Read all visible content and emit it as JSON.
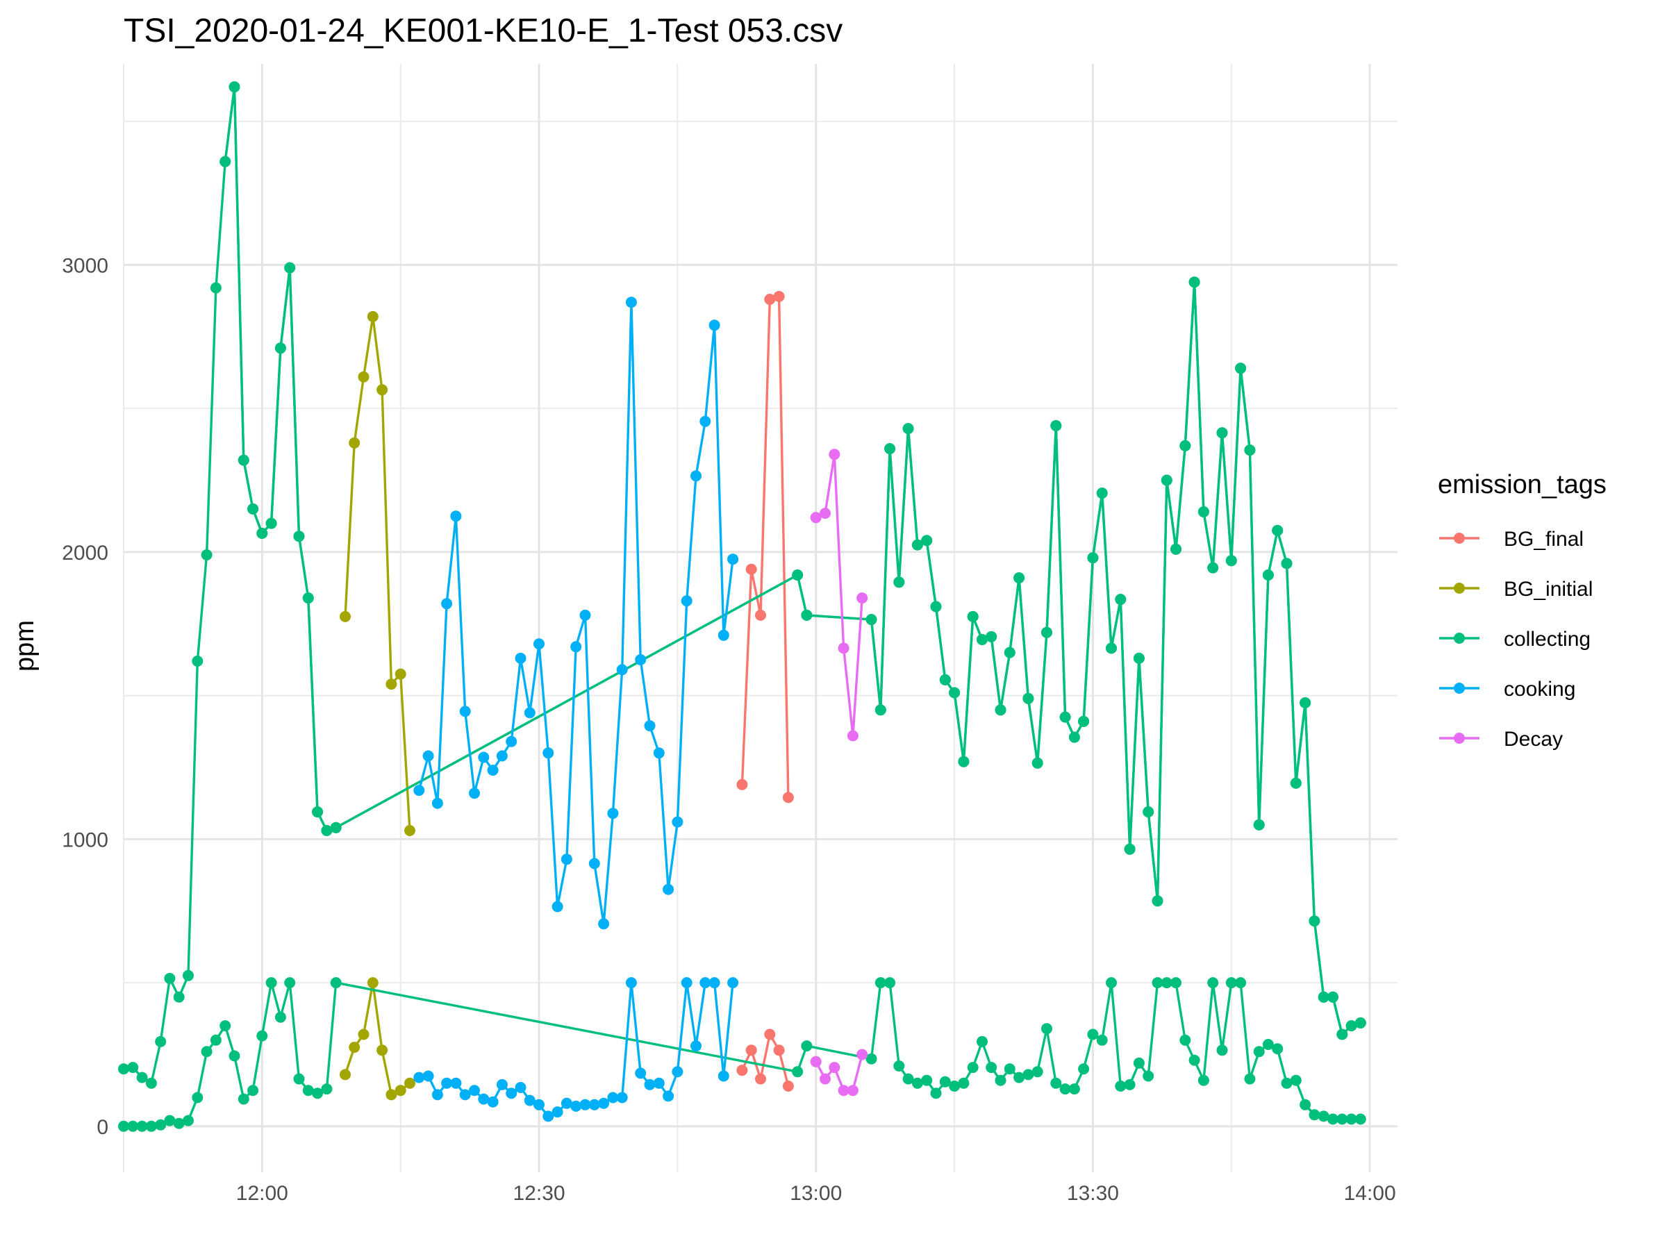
{
  "chart_data": {
    "type": "line",
    "title": "TSI_2020-01-24_KE001-KE10-E_1-Test 053.csv",
    "xlabel": "",
    "ylabel": "ppm",
    "x_ticks": [
      "12:00",
      "12:30",
      "13:00",
      "13:30",
      "14:00"
    ],
    "y_ticks": [
      0,
      1000,
      2000,
      3000
    ],
    "xlim": [
      "11:45",
      "14:03"
    ],
    "ylim": [
      -160,
      3700
    ],
    "grid": true,
    "legend_title": "emission_tags",
    "legend_position": "right",
    "series": [
      {
        "name": "BG_final",
        "color": "#F8766D",
        "lines": [
          {
            "x": [
              "12:52",
              "12:53",
              "12:54",
              "12:55",
              "12:56",
              "12:57"
            ],
            "y": [
              1190,
              1940,
              1780,
              2880,
              2890,
              1145
            ]
          },
          {
            "x": [
              "12:52",
              "12:53",
              "12:54",
              "12:55",
              "12:56",
              "12:57"
            ],
            "y": [
              195,
              265,
              165,
              320,
              265,
              140
            ]
          }
        ]
      },
      {
        "name": "BG_initial",
        "color": "#A3A500",
        "lines": [
          {
            "x": [
              "12:09",
              "12:10",
              "12:11",
              "12:12",
              "12:13",
              "12:14",
              "12:15",
              "12:16"
            ],
            "y": [
              1775,
              2380,
              2610,
              2820,
              2565,
              1540,
              1575,
              1030
            ]
          },
          {
            "x": [
              "12:09",
              "12:10",
              "12:11",
              "12:12",
              "12:13",
              "12:14",
              "12:15",
              "12:16"
            ],
            "y": [
              180,
              275,
              320,
              500,
              265,
              110,
              125,
              150
            ]
          }
        ]
      },
      {
        "name": "collecting",
        "color": "#00BF7D",
        "lines": [
          {
            "x": [
              "11:56",
              "11:57",
              "11:58",
              "11:59",
              "12:00",
              "12:01",
              "12:02",
              "12:03",
              "12:04",
              "12:05",
              "12:06",
              "12:07",
              "12:08",
              "12:58",
              "12:59",
              "13:06",
              "13:07",
              "13:08",
              "13:09",
              "13:10",
              "13:11",
              "13:12",
              "13:13",
              "13:14",
              "13:15",
              "13:16",
              "13:17",
              "13:18",
              "13:19",
              "13:20",
              "13:21",
              "13:22",
              "13:23",
              "13:24",
              "13:25",
              "13:26",
              "13:27",
              "13:28",
              "13:29",
              "13:30",
              "13:31",
              "13:32",
              "13:33",
              "13:34",
              "13:35",
              "13:36",
              "13:37",
              "13:38",
              "13:39",
              "13:40",
              "13:41",
              "13:42",
              "13:43",
              "13:44",
              "13:45",
              "13:46",
              "13:47",
              "13:48",
              "13:49",
              "13:50",
              "13:51",
              "13:52",
              "13:53",
              "13:54",
              "13:55",
              "13:56",
              "13:57",
              "13:58",
              "13:59"
            ],
            "y": [
              3360,
              3620,
              2320,
              2150,
              2065,
              2100,
              2710,
              2990,
              2055,
              1840,
              1095,
              1030,
              1040,
              1920,
              1780,
              1765,
              1450,
              2360,
              1895,
              2430,
              2025,
              2040,
              1810,
              1555,
              1510,
              1270,
              1775,
              1695,
              1705,
              1450,
              1650,
              1910,
              1490,
              1265,
              1720,
              2440,
              1425,
              1355,
              1410,
              1980,
              2205,
              1665,
              1835,
              965,
              1630,
              1095,
              785,
              2250,
              2010,
              2370,
              2940,
              2140,
              1945,
              2415,
              1970,
              2640,
              2355,
              1050,
              1920,
              2075,
              1960,
              1195,
              1475,
              715,
              450,
              450,
              320,
              350,
              360
            ]
          },
          {
            "x": [
              "11:45",
              "11:46",
              "11:47",
              "11:48",
              "11:49",
              "11:50",
              "11:51",
              "11:52",
              "11:53",
              "11:54",
              "11:55",
              "11:56",
              "11:57",
              "11:58",
              "11:59",
              "12:00",
              "12:01",
              "12:02",
              "12:03",
              "12:04",
              "12:05",
              "12:06",
              "12:07",
              "12:08",
              "12:58",
              "12:59",
              "13:06",
              "13:07",
              "13:08",
              "13:09",
              "13:10",
              "13:11",
              "13:12",
              "13:13",
              "13:14",
              "13:15",
              "13:16",
              "13:17",
              "13:18",
              "13:19",
              "13:20",
              "13:21",
              "13:22",
              "13:23",
              "13:24",
              "13:25",
              "13:26",
              "13:27",
              "13:28",
              "13:29",
              "13:30",
              "13:31",
              "13:32",
              "13:33",
              "13:34",
              "13:35",
              "13:36",
              "13:37",
              "13:38",
              "13:39",
              "13:40",
              "13:41",
              "13:42",
              "13:43",
              "13:44",
              "13:45",
              "13:46",
              "13:47",
              "13:48",
              "13:49",
              "13:50",
              "13:51",
              "13:52",
              "13:53",
              "13:54",
              "13:55",
              "13:56",
              "13:57",
              "13:58",
              "13:59"
            ],
            "y": [
              200,
              205,
              170,
              150,
              295,
              515,
              450,
              525,
              1620,
              1990,
              2920,
              3360,
              3620,
              2320,
              2150,
              2065,
              2100,
              2710,
              2990,
              2055,
              1840,
              1095,
              1030,
              1040,
              1920,
              1780,
              1765,
              1450,
              2360,
              1895,
              2430,
              2025,
              2040,
              1810,
              1555,
              1510,
              1270,
              1775,
              1695,
              1705,
              1450,
              1650,
              1910,
              1490,
              1265,
              1720,
              2440,
              1425,
              1355,
              1410,
              1980,
              2205,
              1665,
              1835,
              965,
              1630,
              1095,
              785,
              2250,
              2010,
              2370,
              2940,
              2140,
              1945,
              2415,
              1970,
              2640,
              2355,
              1050,
              1920,
              2075,
              1960,
              1195,
              1475,
              715,
              450,
              450,
              320,
              350,
              360
            ]
          },
          {
            "x": [
              "11:45",
              "11:46",
              "11:47",
              "11:48",
              "11:49",
              "11:50",
              "11:51",
              "11:52",
              "11:53",
              "11:54",
              "11:55",
              "11:56",
              "11:57",
              "11:58",
              "11:59",
              "12:00",
              "12:01",
              "12:02",
              "12:03",
              "12:04",
              "12:05",
              "12:06",
              "12:07",
              "12:08",
              "12:58",
              "12:59",
              "13:06",
              "13:07",
              "13:08",
              "13:09",
              "13:10",
              "13:11",
              "13:12",
              "13:13",
              "13:14",
              "13:15",
              "13:16",
              "13:17",
              "13:18",
              "13:19",
              "13:20",
              "13:21",
              "13:22",
              "13:23",
              "13:24",
              "13:25",
              "13:26",
              "13:27",
              "13:28",
              "13:29",
              "13:30",
              "13:31",
              "13:32",
              "13:33",
              "13:34",
              "13:35",
              "13:36",
              "13:37",
              "13:38",
              "13:39",
              "13:40",
              "13:41",
              "13:42",
              "13:43",
              "13:44",
              "13:45",
              "13:46",
              "13:47",
              "13:48",
              "13:49",
              "13:50",
              "13:51",
              "13:52",
              "13:53",
              "13:54",
              "13:55",
              "13:56",
              "13:57",
              "13:58",
              "13:59"
            ],
            "y": [
              0,
              0,
              0,
              0,
              5,
              20,
              10,
              20,
              100,
              260,
              300,
              350,
              245,
              95,
              125,
              315,
              500,
              380,
              500,
              165,
              125,
              115,
              130,
              500,
              190,
              280,
              235,
              500,
              500,
              210,
              165,
              150,
              160,
              115,
              155,
              140,
              150,
              205,
              295,
              205,
              160,
              200,
              170,
              180,
              190,
              340,
              150,
              130,
              130,
              200,
              320,
              300,
              500,
              140,
              145,
              220,
              175,
              500,
              500,
              500,
              300,
              230,
              160,
              500,
              265,
              500,
              500,
              165,
              260,
              285,
              270,
              150,
              160,
              75,
              40,
              35,
              25,
              25,
              25,
              25
            ]
          }
        ]
      },
      {
        "name": "cooking",
        "color": "#00B0F6",
        "lines": [
          {
            "x": [
              "12:17",
              "12:18",
              "12:19",
              "12:20",
              "12:21",
              "12:22",
              "12:23",
              "12:24",
              "12:25",
              "12:26",
              "12:27",
              "12:28",
              "12:29",
              "12:30",
              "12:31",
              "12:32",
              "12:33",
              "12:34",
              "12:35",
              "12:36",
              "12:37",
              "12:38",
              "12:39",
              "12:40",
              "12:41",
              "12:42",
              "12:43",
              "12:44",
              "12:45",
              "12:46",
              "12:47",
              "12:48",
              "12:49",
              "12:50",
              "12:51"
            ],
            "y": [
              1170,
              1290,
              1125,
              1820,
              2125,
              1445,
              1160,
              1285,
              1240,
              1290,
              1340,
              1630,
              1440,
              1680,
              1300,
              765,
              930,
              1670,
              1780,
              915,
              705,
              1090,
              1590,
              2870,
              1625,
              1395,
              1300,
              825,
              1060,
              1830,
              2265,
              2455,
              2790,
              1710,
              1975
            ]
          },
          {
            "x": [
              "12:17",
              "12:18",
              "12:19",
              "12:20",
              "12:21",
              "12:22",
              "12:23",
              "12:24",
              "12:25",
              "12:26",
              "12:27",
              "12:28",
              "12:29",
              "12:30",
              "12:31",
              "12:32",
              "12:33",
              "12:34",
              "12:35",
              "12:36",
              "12:37",
              "12:38",
              "12:39",
              "12:40",
              "12:41",
              "12:42",
              "12:43",
              "12:44",
              "12:45",
              "12:46",
              "12:47",
              "12:48",
              "12:49",
              "12:50",
              "12:51"
            ],
            "y": [
              170,
              175,
              110,
              150,
              150,
              110,
              125,
              95,
              85,
              145,
              115,
              135,
              90,
              75,
              35,
              50,
              80,
              70,
              75,
              75,
              80,
              100,
              100,
              500,
              185,
              145,
              150,
              105,
              190,
              500,
              280,
              500,
              500,
              175,
              500
            ]
          }
        ]
      },
      {
        "name": "Decay",
        "color": "#E76BF3",
        "lines": [
          {
            "x": [
              "13:00",
              "13:01",
              "13:02",
              "13:03",
              "13:04",
              "13:05"
            ],
            "y": [
              2120,
              2135,
              2340,
              1665,
              1360,
              1840
            ]
          },
          {
            "x": [
              "13:00",
              "13:01",
              "13:02",
              "13:03",
              "13:04",
              "13:05"
            ],
            "y": [
              225,
              165,
              205,
              125,
              125,
              250
            ]
          }
        ]
      }
    ]
  }
}
